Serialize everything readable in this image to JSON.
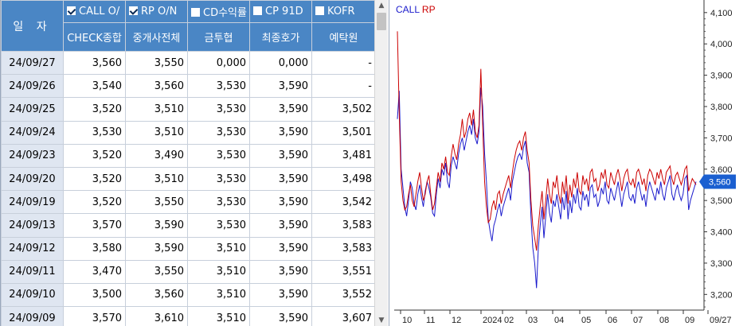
{
  "table": {
    "date_header": "일 자",
    "columns": [
      {
        "name": "CALL O/N",
        "shown": "CALL O/",
        "checked": true,
        "sub": "CHECK종합"
      },
      {
        "name": "RP O/N",
        "shown": "RP O/N",
        "checked": true,
        "sub": "중개사전체"
      },
      {
        "name": "CD수익률",
        "shown": "CD수익률",
        "checked": false,
        "sub": "금투협"
      },
      {
        "name": "CP 91D",
        "shown": "CP 91D",
        "checked": false,
        "sub": "최종호가"
      },
      {
        "name": "KOFR",
        "shown": "KOFR",
        "checked": false,
        "sub": "예탁원"
      }
    ],
    "rows": [
      {
        "date": "24/09/27",
        "vals": [
          "3,560",
          "3,550",
          "0,000",
          "0,000",
          "-"
        ]
      },
      {
        "date": "24/09/26",
        "vals": [
          "3,540",
          "3,560",
          "3,530",
          "3,590",
          "-"
        ]
      },
      {
        "date": "24/09/25",
        "vals": [
          "3,520",
          "3,510",
          "3,530",
          "3,590",
          "3,502"
        ]
      },
      {
        "date": "24/09/24",
        "vals": [
          "3,530",
          "3,510",
          "3,530",
          "3,590",
          "3,501"
        ]
      },
      {
        "date": "24/09/23",
        "vals": [
          "3,520",
          "3,490",
          "3,530",
          "3,590",
          "3,481"
        ]
      },
      {
        "date": "24/09/20",
        "vals": [
          "3,520",
          "3,510",
          "3,530",
          "3,590",
          "3,498"
        ]
      },
      {
        "date": "24/09/19",
        "vals": [
          "3,520",
          "3,550",
          "3,530",
          "3,590",
          "3,542"
        ]
      },
      {
        "date": "24/09/13",
        "vals": [
          "3,570",
          "3,590",
          "3,530",
          "3,590",
          "3,583"
        ]
      },
      {
        "date": "24/09/12",
        "vals": [
          "3,580",
          "3,590",
          "3,510",
          "3,590",
          "3,583"
        ]
      },
      {
        "date": "24/09/11",
        "vals": [
          "3,470",
          "3,550",
          "3,510",
          "3,590",
          "3,551"
        ]
      },
      {
        "date": "24/09/10",
        "vals": [
          "3,500",
          "3,560",
          "3,510",
          "3,590",
          "3,552"
        ]
      },
      {
        "date": "24/09/09",
        "vals": [
          "3,570",
          "3,610",
          "3,510",
          "3,590",
          "3,607"
        ]
      }
    ]
  },
  "scrollbar": {
    "up_icon": "scroll-up-arrow",
    "down_icon": "scroll-down-arrow"
  },
  "chart_data": {
    "type": "line",
    "legend": [
      {
        "name": "CALL",
        "color": "#1a1acc"
      },
      {
        "name": "RP",
        "color": "#cc0000"
      }
    ],
    "y_ticks": [
      "4,100",
      "4,000",
      "3,900",
      "3,800",
      "3,700",
      "3,600",
      "3,500",
      "3,400",
      "3,300",
      "3,200"
    ],
    "ylim": [
      3150,
      4130
    ],
    "x_ticks": [
      "10",
      "11",
      "12",
      "2024",
      "02",
      "03",
      "04",
      "05",
      "06",
      "07",
      "08",
      "09",
      "09/27"
    ],
    "current_value_label": "3,560",
    "current_value": 3560,
    "series": [
      {
        "name": "CALL",
        "color": "#1a1acc",
        "values": [
          3760,
          3850,
          3600,
          3540,
          3480,
          3450,
          3500,
          3560,
          3540,
          3490,
          3470,
          3520,
          3550,
          3510,
          3480,
          3530,
          3560,
          3540,
          3510,
          3460,
          3450,
          3520,
          3570,
          3540,
          3600,
          3580,
          3620,
          3560,
          3540,
          3610,
          3640,
          3620,
          3600,
          3650,
          3680,
          3700,
          3660,
          3690,
          3720,
          3740,
          3710,
          3760,
          3700,
          3680,
          3720,
          3860,
          3800,
          3650,
          3560,
          3440,
          3400,
          3370,
          3420,
          3440,
          3470,
          3490,
          3450,
          3480,
          3500,
          3520,
          3540,
          3500,
          3560,
          3590,
          3620,
          3640,
          3650,
          3630,
          3670,
          3690,
          3620,
          3590,
          3450,
          3350,
          3300,
          3220,
          3350,
          3420,
          3480,
          3380,
          3450,
          3520,
          3460,
          3430,
          3500,
          3480,
          3520,
          3480,
          3440,
          3510,
          3470,
          3530,
          3440,
          3500,
          3460,
          3520,
          3490,
          3540,
          3480,
          3470,
          3530,
          3500,
          3520,
          3480,
          3540,
          3550,
          3510,
          3520,
          3480,
          3500,
          3540,
          3520,
          3560,
          3500,
          3490,
          3540,
          3520,
          3500,
          3530,
          3560,
          3520,
          3480,
          3520,
          3540,
          3560,
          3510,
          3500,
          3520,
          3490,
          3540,
          3560,
          3530,
          3500,
          3520,
          3480,
          3530,
          3560,
          3540,
          3520,
          3500,
          3540,
          3520,
          3560,
          3520,
          3500,
          3540,
          3560,
          3580,
          3520,
          3500,
          3530,
          3550,
          3520,
          3500,
          3520,
          3570,
          3580,
          3470,
          3500,
          3520,
          3540,
          3560
        ]
      },
      {
        "name": "RP",
        "color": "#cc0000",
        "values": [
          4040,
          3780,
          3560,
          3500,
          3470,
          3480,
          3520,
          3550,
          3500,
          3480,
          3520,
          3560,
          3590,
          3540,
          3500,
          3520,
          3560,
          3580,
          3520,
          3470,
          3490,
          3540,
          3590,
          3560,
          3620,
          3600,
          3640,
          3590,
          3580,
          3640,
          3680,
          3650,
          3630,
          3680,
          3710,
          3760,
          3700,
          3720,
          3760,
          3780,
          3740,
          3790,
          3720,
          3700,
          3740,
          3920,
          3740,
          3560,
          3480,
          3430,
          3440,
          3480,
          3500,
          3470,
          3520,
          3530,
          3490,
          3520,
          3540,
          3560,
          3580,
          3540,
          3590,
          3630,
          3660,
          3680,
          3690,
          3660,
          3700,
          3720,
          3660,
          3620,
          3500,
          3420,
          3380,
          3340,
          3420,
          3480,
          3530,
          3440,
          3500,
          3570,
          3520,
          3490,
          3560,
          3540,
          3580,
          3520,
          3490,
          3560,
          3520,
          3580,
          3490,
          3550,
          3510,
          3570,
          3540,
          3590,
          3530,
          3520,
          3580,
          3550,
          3570,
          3530,
          3590,
          3600,
          3560,
          3570,
          3530,
          3550,
          3590,
          3570,
          3600,
          3550,
          3540,
          3590,
          3570,
          3550,
          3580,
          3600,
          3570,
          3530,
          3570,
          3590,
          3600,
          3560,
          3550,
          3570,
          3540,
          3590,
          3600,
          3580,
          3550,
          3570,
          3530,
          3580,
          3600,
          3590,
          3570,
          3550,
          3590,
          3570,
          3600,
          3570,
          3550,
          3590,
          3600,
          3610,
          3570,
          3550,
          3580,
          3590,
          3570,
          3550,
          3570,
          3600,
          3610,
          3530,
          3550,
          3570,
          3560,
          3550
        ]
      }
    ]
  }
}
